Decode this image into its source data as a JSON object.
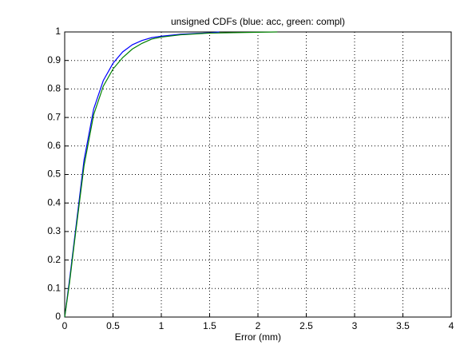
{
  "chart_data": {
    "type": "line",
    "title": "unsigned CDFs (blue: acc, green: compl)",
    "x_label": "Error (mm)",
    "series": [
      {
        "name": "acc",
        "color": "#0000ff",
        "x": [
          0,
          0.05,
          0.1,
          0.2,
          0.3,
          0.4,
          0.5,
          0.6,
          0.7,
          0.8,
          0.9,
          1.0,
          1.2,
          1.5,
          1.6
        ],
        "values": [
          0,
          0.13,
          0.27,
          0.55,
          0.73,
          0.83,
          0.89,
          0.93,
          0.955,
          0.97,
          0.98,
          0.985,
          0.992,
          0.997,
          1
        ]
      },
      {
        "name": "compl",
        "color": "#008000",
        "x": [
          0,
          0.05,
          0.1,
          0.2,
          0.3,
          0.4,
          0.5,
          0.6,
          0.7,
          0.8,
          0.9,
          1.0,
          1.2,
          1.5,
          2.0,
          2.2
        ],
        "values": [
          0,
          0.12,
          0.26,
          0.53,
          0.71,
          0.81,
          0.87,
          0.91,
          0.94,
          0.96,
          0.975,
          0.982,
          0.99,
          0.996,
          0.999,
          1
        ]
      }
    ],
    "xlim": [
      0,
      4
    ],
    "xticks": [
      0,
      0.5,
      1,
      1.5,
      2,
      2.5,
      3,
      3.5,
      4
    ],
    "ylim": [
      0,
      1
    ],
    "yticks": [
      0,
      0.1,
      0.2,
      0.3,
      0.4,
      0.5,
      0.6,
      0.7,
      0.8,
      0.9,
      1
    ],
    "grid": true
  }
}
